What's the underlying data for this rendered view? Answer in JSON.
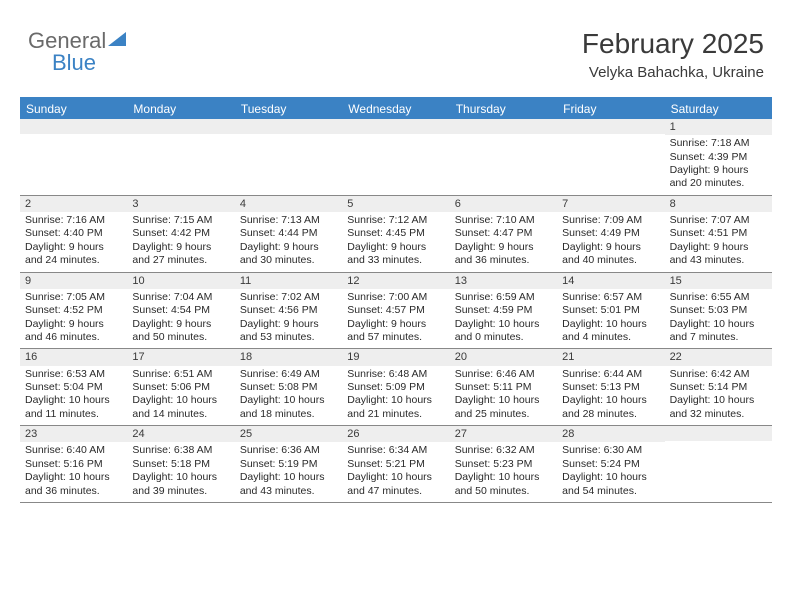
{
  "logo": {
    "text1": "General",
    "text2": "Blue"
  },
  "header": {
    "month": "February 2025",
    "location": "Velyka Bahachka, Ukraine"
  },
  "colors": {
    "accent": "#3b82c4",
    "dayHeaderBg": "#eeeeee",
    "border": "#888888"
  },
  "weekdays": [
    "Sunday",
    "Monday",
    "Tuesday",
    "Wednesday",
    "Thursday",
    "Friday",
    "Saturday"
  ],
  "weeks": [
    [
      null,
      null,
      null,
      null,
      null,
      null,
      {
        "n": "1",
        "sunrise": "7:18 AM",
        "sunset": "4:39 PM",
        "daylight": "9 hours and 20 minutes."
      }
    ],
    [
      {
        "n": "2",
        "sunrise": "7:16 AM",
        "sunset": "4:40 PM",
        "daylight": "9 hours and 24 minutes."
      },
      {
        "n": "3",
        "sunrise": "7:15 AM",
        "sunset": "4:42 PM",
        "daylight": "9 hours and 27 minutes."
      },
      {
        "n": "4",
        "sunrise": "7:13 AM",
        "sunset": "4:44 PM",
        "daylight": "9 hours and 30 minutes."
      },
      {
        "n": "5",
        "sunrise": "7:12 AM",
        "sunset": "4:45 PM",
        "daylight": "9 hours and 33 minutes."
      },
      {
        "n": "6",
        "sunrise": "7:10 AM",
        "sunset": "4:47 PM",
        "daylight": "9 hours and 36 minutes."
      },
      {
        "n": "7",
        "sunrise": "7:09 AM",
        "sunset": "4:49 PM",
        "daylight": "9 hours and 40 minutes."
      },
      {
        "n": "8",
        "sunrise": "7:07 AM",
        "sunset": "4:51 PM",
        "daylight": "9 hours and 43 minutes."
      }
    ],
    [
      {
        "n": "9",
        "sunrise": "7:05 AM",
        "sunset": "4:52 PM",
        "daylight": "9 hours and 46 minutes."
      },
      {
        "n": "10",
        "sunrise": "7:04 AM",
        "sunset": "4:54 PM",
        "daylight": "9 hours and 50 minutes."
      },
      {
        "n": "11",
        "sunrise": "7:02 AM",
        "sunset": "4:56 PM",
        "daylight": "9 hours and 53 minutes."
      },
      {
        "n": "12",
        "sunrise": "7:00 AM",
        "sunset": "4:57 PM",
        "daylight": "9 hours and 57 minutes."
      },
      {
        "n": "13",
        "sunrise": "6:59 AM",
        "sunset": "4:59 PM",
        "daylight": "10 hours and 0 minutes."
      },
      {
        "n": "14",
        "sunrise": "6:57 AM",
        "sunset": "5:01 PM",
        "daylight": "10 hours and 4 minutes."
      },
      {
        "n": "15",
        "sunrise": "6:55 AM",
        "sunset": "5:03 PM",
        "daylight": "10 hours and 7 minutes."
      }
    ],
    [
      {
        "n": "16",
        "sunrise": "6:53 AM",
        "sunset": "5:04 PM",
        "daylight": "10 hours and 11 minutes."
      },
      {
        "n": "17",
        "sunrise": "6:51 AM",
        "sunset": "5:06 PM",
        "daylight": "10 hours and 14 minutes."
      },
      {
        "n": "18",
        "sunrise": "6:49 AM",
        "sunset": "5:08 PM",
        "daylight": "10 hours and 18 minutes."
      },
      {
        "n": "19",
        "sunrise": "6:48 AM",
        "sunset": "5:09 PM",
        "daylight": "10 hours and 21 minutes."
      },
      {
        "n": "20",
        "sunrise": "6:46 AM",
        "sunset": "5:11 PM",
        "daylight": "10 hours and 25 minutes."
      },
      {
        "n": "21",
        "sunrise": "6:44 AM",
        "sunset": "5:13 PM",
        "daylight": "10 hours and 28 minutes."
      },
      {
        "n": "22",
        "sunrise": "6:42 AM",
        "sunset": "5:14 PM",
        "daylight": "10 hours and 32 minutes."
      }
    ],
    [
      {
        "n": "23",
        "sunrise": "6:40 AM",
        "sunset": "5:16 PM",
        "daylight": "10 hours and 36 minutes."
      },
      {
        "n": "24",
        "sunrise": "6:38 AM",
        "sunset": "5:18 PM",
        "daylight": "10 hours and 39 minutes."
      },
      {
        "n": "25",
        "sunrise": "6:36 AM",
        "sunset": "5:19 PM",
        "daylight": "10 hours and 43 minutes."
      },
      {
        "n": "26",
        "sunrise": "6:34 AM",
        "sunset": "5:21 PM",
        "daylight": "10 hours and 47 minutes."
      },
      {
        "n": "27",
        "sunrise": "6:32 AM",
        "sunset": "5:23 PM",
        "daylight": "10 hours and 50 minutes."
      },
      {
        "n": "28",
        "sunrise": "6:30 AM",
        "sunset": "5:24 PM",
        "daylight": "10 hours and 54 minutes."
      },
      null
    ]
  ],
  "labels": {
    "sunrise": "Sunrise:",
    "sunset": "Sunset:",
    "daylight": "Daylight:"
  }
}
